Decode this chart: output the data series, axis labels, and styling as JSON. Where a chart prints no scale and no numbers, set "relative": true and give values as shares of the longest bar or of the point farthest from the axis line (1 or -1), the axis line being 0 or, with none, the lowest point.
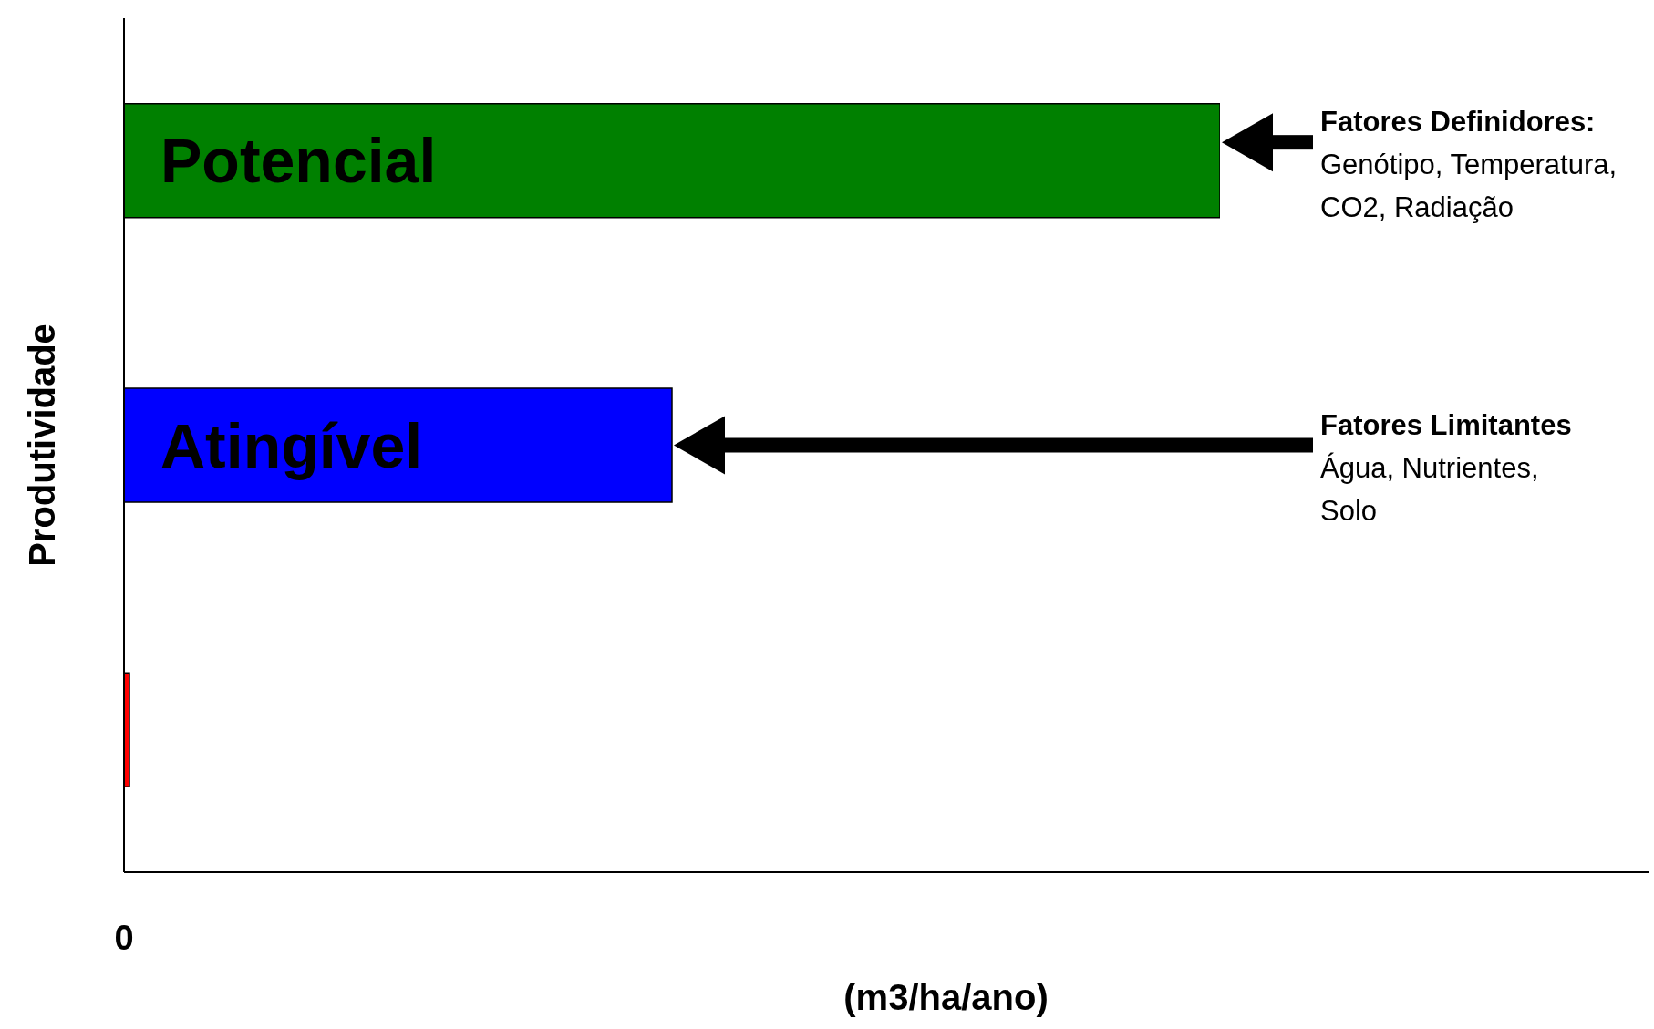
{
  "chart_data": {
    "type": "bar",
    "orientation": "horizontal",
    "relative": true,
    "categories": [
      "Potencial",
      "Atingível",
      null
    ],
    "values": [
      1,
      0.5,
      0.005
    ],
    "colors": [
      "#008000",
      "#0000ff",
      "#ff0000"
    ],
    "ylabel": "Produtividade",
    "xlabel": "(m3/ha/ano)",
    "annotations": [
      "Fatores Definidores:\nGenótipo, Temperatura,\nCO2, Radiação",
      "Fatores Limitantes\nÁgua, Nutrientes,\nSolo",
      "0"
    ]
  }
}
